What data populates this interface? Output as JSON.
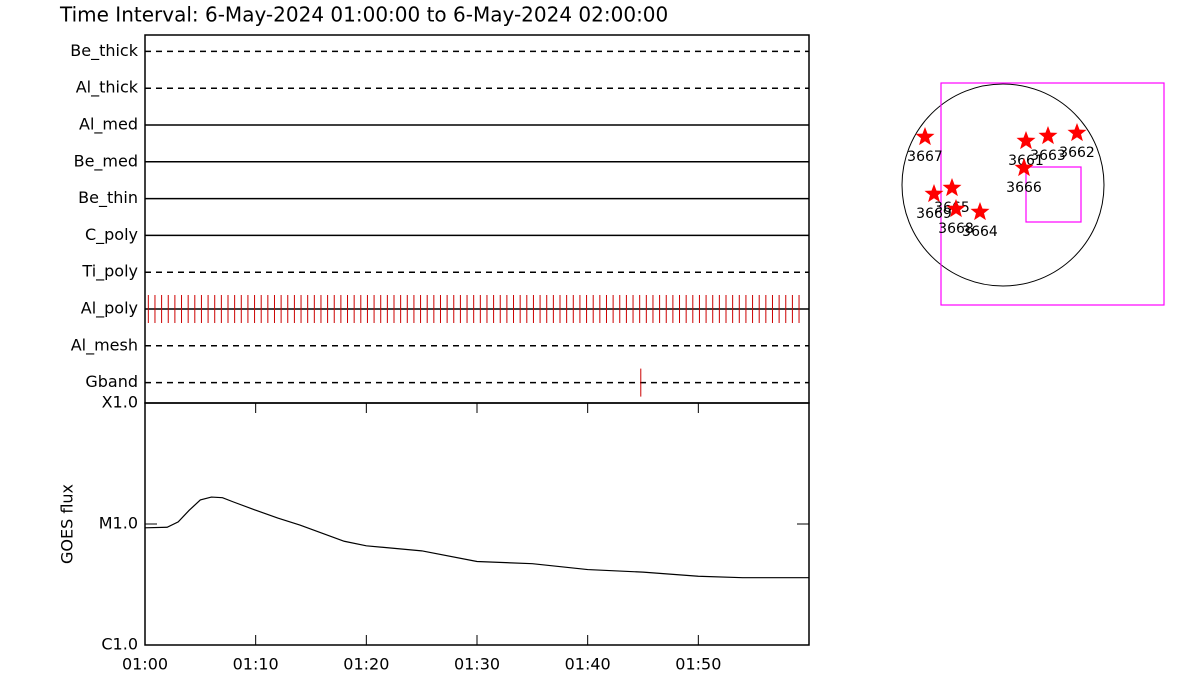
{
  "chart_data": [
    {
      "type": "timeline",
      "title": "Time Interval:  6-May-2024 01:00:00 to  6-May-2024 02:00:00",
      "xlim": [
        0,
        60
      ],
      "color": "#cc0000",
      "filters": [
        {
          "name": "Be_thick",
          "style": "dashed",
          "observations": []
        },
        {
          "name": "Al_thick",
          "style": "dashed",
          "observations": []
        },
        {
          "name": "Al_med",
          "style": "solid",
          "observations": []
        },
        {
          "name": "Be_med",
          "style": "solid",
          "observations": []
        },
        {
          "name": "Be_thin",
          "style": "solid",
          "observations": []
        },
        {
          "name": "C_poly",
          "style": "solid",
          "observations": []
        },
        {
          "name": "Ti_poly",
          "style": "dashed",
          "observations": []
        },
        {
          "name": "Al_poly",
          "style": "solid",
          "observations": [
            0.3,
            0.9,
            1.5,
            2.1,
            2.7,
            3.3,
            3.9,
            4.5,
            5.1,
            5.7,
            6.3,
            6.9,
            7.5,
            8.1,
            8.7,
            9.3,
            9.9,
            10.5,
            11.1,
            11.7,
            12.3,
            12.9,
            13.5,
            14.1,
            14.7,
            15.3,
            15.9,
            16.5,
            17.1,
            17.7,
            18.3,
            18.9,
            19.5,
            20.1,
            20.7,
            21.3,
            21.9,
            22.5,
            23.1,
            23.7,
            24.3,
            24.9,
            25.5,
            26.1,
            26.7,
            27.3,
            27.9,
            28.5,
            29.1,
            29.7,
            30.3,
            30.9,
            31.5,
            32.1,
            32.7,
            33.3,
            33.9,
            34.5,
            35.1,
            35.7,
            36.3,
            36.9,
            37.5,
            38.1,
            38.7,
            39.3,
            39.9,
            40.5,
            41.1,
            41.7,
            42.3,
            42.9,
            43.5,
            44.1,
            44.7,
            45.3,
            45.9,
            46.5,
            47.1,
            47.7,
            48.3,
            48.9,
            49.5,
            50.1,
            50.7,
            51.3,
            51.9,
            52.5,
            53.1,
            53.7,
            54.3,
            54.9,
            55.5,
            56.1,
            56.7,
            57.3,
            57.9,
            58.5,
            59.1
          ]
        },
        {
          "name": "Al_mesh",
          "style": "dashed",
          "observations": []
        },
        {
          "name": "Gband",
          "style": "dashed",
          "observations": [
            44.8
          ]
        }
      ]
    },
    {
      "type": "line",
      "y_label": "GOES flux",
      "log_scale": true,
      "xlim": [
        0,
        60
      ],
      "xticks": [
        {
          "value": 0,
          "label": "01:00"
        },
        {
          "value": 10,
          "label": "01:10"
        },
        {
          "value": 20,
          "label": "01:20"
        },
        {
          "value": 30,
          "label": "01:30"
        },
        {
          "value": 40,
          "label": "01:40"
        },
        {
          "value": 50,
          "label": "01:50"
        }
      ],
      "ylim": [
        1e-06,
        0.0001
      ],
      "yticks": [
        {
          "value": 1e-06,
          "label": "C1.0"
        },
        {
          "value": 1e-05,
          "label": "M1.0"
        },
        {
          "value": 0.0001,
          "label": "X1.0"
        }
      ],
      "x": [
        0,
        2,
        3,
        4,
        5,
        6,
        7,
        8,
        10,
        12,
        14,
        16,
        18,
        20,
        25,
        30,
        35,
        40,
        45,
        50,
        54,
        60
      ],
      "series": [
        {
          "color": "#000000",
          "values": [
            9.3e-06,
            9.4e-06,
            1.04e-05,
            1.3e-05,
            1.58e-05,
            1.67e-05,
            1.65e-05,
            1.52e-05,
            1.3e-05,
            1.12e-05,
            9.8e-06,
            8.4e-06,
            7.2e-06,
            6.6e-06,
            6e-06,
            4.9e-06,
            4.7e-06,
            4.2e-06,
            4e-06,
            3.7e-06,
            3.6e-06,
            3.6e-06
          ]
        }
      ]
    }
  ],
  "map": {
    "star_color": "#ff0000",
    "box_color": "#ff00ff",
    "regions": [
      "3667",
      "3669",
      "3665",
      "3668",
      "3664",
      "3661",
      "3663",
      "3662",
      "3666"
    ]
  }
}
